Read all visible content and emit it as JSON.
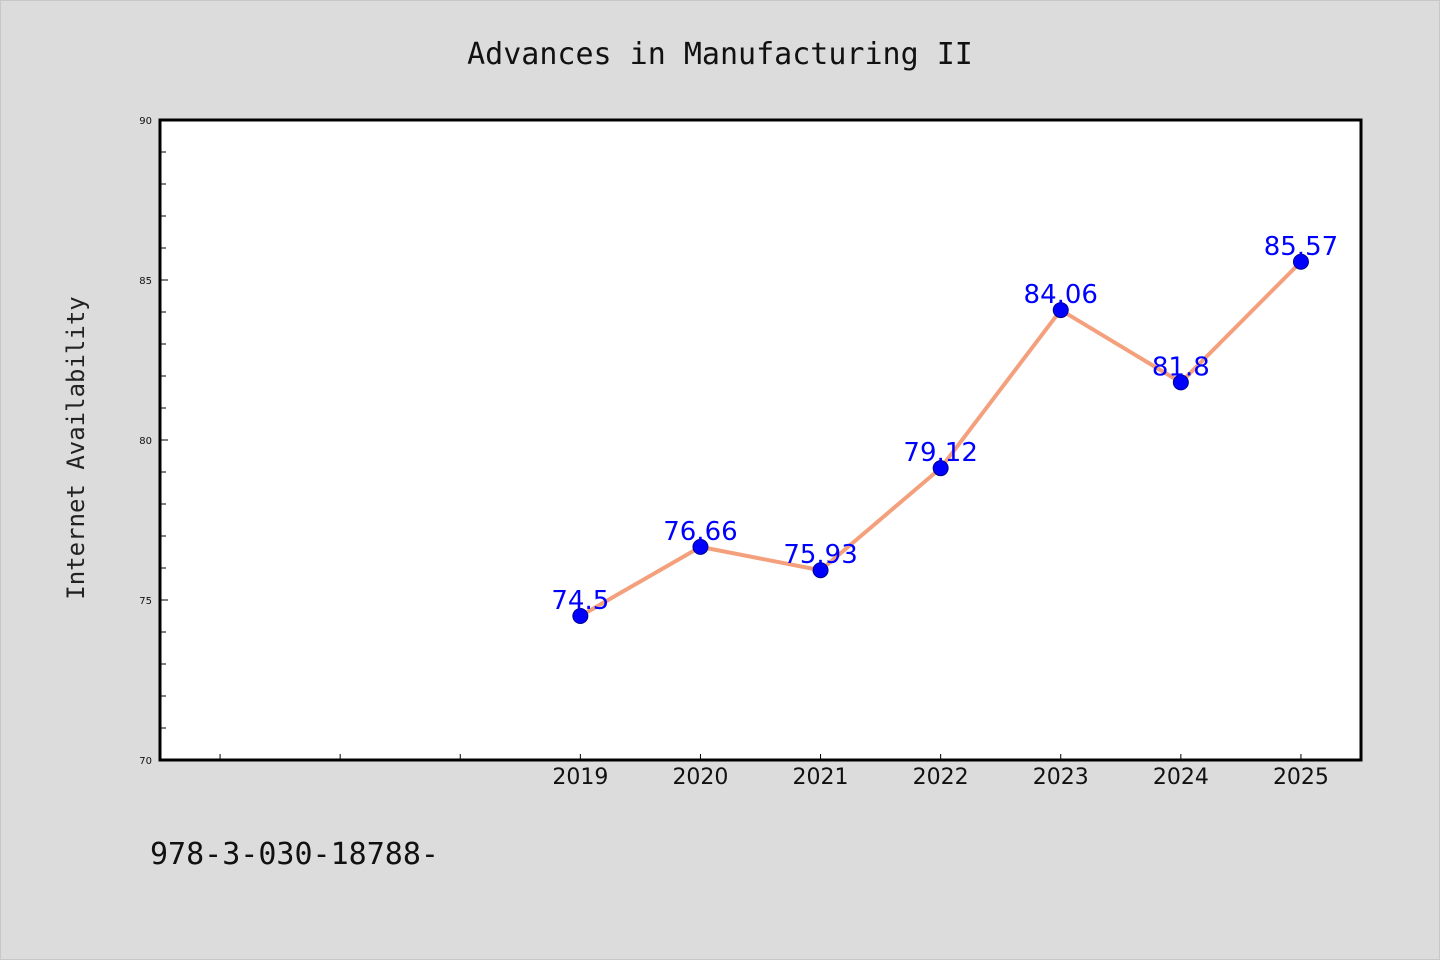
{
  "footer_text": "978-3-030-18788-",
  "colors": {
    "background": "#dcdcdc",
    "plot_background": "#ffffff",
    "line": "#f4a07c",
    "marker": "#0000ff",
    "data_label": "#0000ff"
  },
  "chart_data": {
    "type": "line",
    "title": "Advances in Manufacturing II",
    "xlabel": "",
    "ylabel": "Internet Availability",
    "x": [
      "2019",
      "2020",
      "2021",
      "2022",
      "2023",
      "2024",
      "2025"
    ],
    "xlim": [
      2015.5,
      2025.5
    ],
    "ylim": [
      70,
      90
    ],
    "yticks": [
      70,
      75,
      80,
      85,
      90
    ],
    "series": [
      {
        "values": [
          74.5,
          76.66,
          75.93,
          79.12,
          84.06,
          81.8,
          85.57
        ],
        "labels": [
          "74.5",
          "76.66",
          "75.93",
          "79.12",
          "84.06",
          "81.8",
          "85.57"
        ]
      }
    ],
    "grid": false,
    "legend": "none"
  }
}
